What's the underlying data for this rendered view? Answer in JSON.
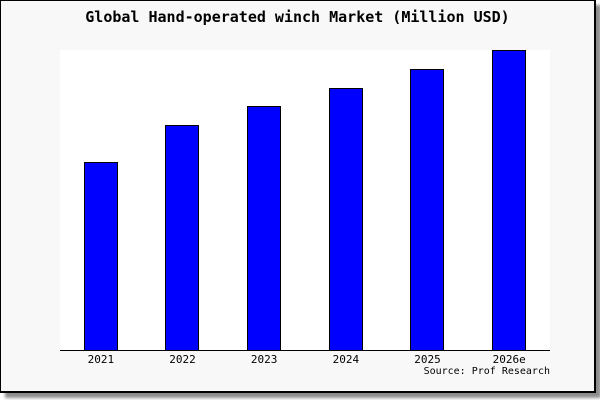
{
  "window": {
    "background": "#f8f8f8",
    "frame_border_color": "#000000",
    "page_background": "#ffffff"
  },
  "chart_data": {
    "type": "bar",
    "title": "Global Hand-operated winch Market (Million USD)",
    "categories": [
      "2021",
      "2022",
      "2023",
      "2024",
      "2025",
      "2026e"
    ],
    "values": [
      1.0,
      1.2,
      1.3,
      1.4,
      1.5,
      1.6
    ],
    "value_scale": "relative heights (chart displays no y-axis, gridlines, or numeric value labels)",
    "ylim": [
      0,
      1.6
    ],
    "xlabel": "",
    "ylabel": "",
    "grid": false,
    "legend": false,
    "bar_color": "#0000ff",
    "bar_border_color": "#000000",
    "plot_background": "#ffffff",
    "axis_line_color": "#000000",
    "source": "Source: Prof Research"
  }
}
